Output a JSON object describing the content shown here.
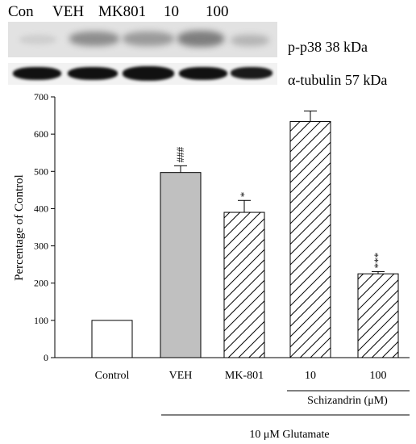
{
  "blot": {
    "lane_labels": [
      "Con",
      "VEH",
      "MK801",
      "10",
      "100"
    ],
    "protein_labels": [
      "p-p38 38 kDa",
      "α-tubulin 57 kDa"
    ]
  },
  "chart_data": {
    "type": "bar",
    "categories": [
      "Control",
      "VEH",
      "MK-801",
      "10",
      "100"
    ],
    "values": [
      100,
      497,
      390,
      634,
      225
    ],
    "errors": [
      0,
      18,
      32,
      28,
      6
    ],
    "significance": [
      "",
      "###",
      "*",
      "",
      "***"
    ],
    "bar_fill": [
      "white",
      "gray",
      "hatch",
      "hatch",
      "hatch"
    ],
    "ylabel": "Percentage of Control",
    "ylim": [
      0,
      700
    ],
    "yticks": [
      0,
      100,
      200,
      300,
      400,
      500,
      600,
      700
    ],
    "group_labels": {
      "schizandrin": "Schizandrin (μM)",
      "glutamate": "10 μM Glutamate"
    },
    "colors": {
      "gray_bar": "#c0c0c0",
      "bar_outline": "#000000"
    }
  }
}
